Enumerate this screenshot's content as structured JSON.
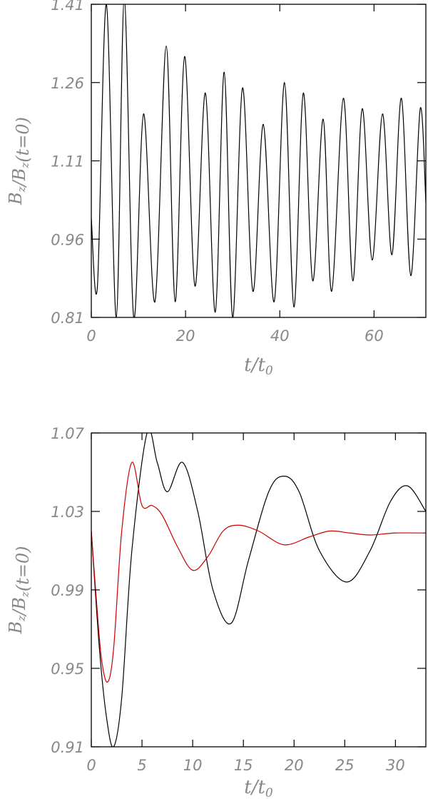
{
  "chart_data": [
    {
      "type": "line",
      "xlabel": "t/t_0",
      "ylabel": "B_z/B_z(t=0)",
      "xlim": [
        0,
        71
      ],
      "ylim": [
        0.81,
        1.41
      ],
      "x_ticks": [
        0,
        20,
        40,
        60
      ],
      "x_tick_labels": [
        "0",
        "20",
        "40",
        "60"
      ],
      "y_ticks": [
        0.81,
        0.96,
        1.11,
        1.26,
        1.41
      ],
      "y_tick_labels": [
        "0.81",
        "0.96",
        "1.11",
        "1.26",
        "1.41"
      ],
      "grid": false,
      "series": [
        {
          "color": "#000000",
          "x": [
            0,
            1.3,
            3.2,
            5.3,
            7.0,
            9.0,
            11.1,
            13.5,
            15.9,
            17.8,
            19.8,
            22.0,
            24.2,
            26.3,
            28.2,
            30.0,
            32.1,
            34.3,
            36.5,
            38.8,
            41.0,
            43.0,
            45.0,
            47.0,
            49.2,
            51.0,
            53.5,
            55.5,
            57.5,
            59.6,
            61.8,
            63.8,
            65.8,
            67.8,
            69.8,
            71.0
          ],
          "y": [
            1.0,
            0.87,
            1.41,
            0.81,
            1.42,
            0.81,
            1.2,
            0.84,
            1.33,
            0.84,
            1.31,
            0.87,
            1.24,
            0.82,
            1.28,
            0.81,
            1.25,
            0.86,
            1.18,
            0.84,
            1.26,
            0.83,
            1.24,
            0.88,
            1.19,
            0.86,
            1.23,
            0.88,
            1.21,
            0.92,
            1.2,
            0.93,
            1.23,
            0.89,
            1.21,
            1.03
          ]
        }
      ]
    },
    {
      "type": "line",
      "xlabel": "t/t_0",
      "ylabel": "B_z/B_z(t=0)",
      "xlim": [
        0,
        33
      ],
      "ylim": [
        0.91,
        1.07
      ],
      "x_ticks": [
        0,
        5,
        10,
        15,
        20,
        25,
        30
      ],
      "x_tick_labels": [
        "0",
        "5",
        "10",
        "15",
        "20",
        "25",
        "30"
      ],
      "y_ticks": [
        0.91,
        0.95,
        0.99,
        1.03,
        1.07
      ],
      "y_tick_labels": [
        "0.91",
        "0.95",
        "0.99",
        "1.03",
        "1.07"
      ],
      "grid": false,
      "series": [
        {
          "color": "#000000",
          "x": [
            0,
            0.8,
            1.5,
            2.2,
            3.0,
            4.0,
            5.5,
            6.5,
            7.5,
            9.0,
            10.5,
            12.0,
            13.8,
            15.5,
            17.5,
            19.0,
            20.5,
            22.5,
            25.2,
            27.5,
            29.5,
            31.2,
            33.0
          ],
          "y": [
            1.02,
            0.96,
            0.925,
            0.91,
            0.935,
            1.01,
            1.07,
            1.055,
            1.04,
            1.055,
            1.03,
            0.99,
            0.973,
            1.005,
            1.04,
            1.048,
            1.04,
            1.01,
            0.994,
            1.01,
            1.035,
            1.043,
            1.03
          ]
        },
        {
          "color": "#cc0000",
          "x": [
            0,
            0.5,
            1.0,
            1.6,
            2.2,
            3.0,
            4.0,
            5.0,
            6.0,
            7.0,
            8.5,
            10.0,
            11.5,
            13.0,
            14.5,
            16.5,
            19.0,
            21.5,
            23.5,
            25.5,
            27.5,
            30.0,
            33.0
          ],
          "y": [
            1.02,
            0.985,
            0.955,
            0.943,
            0.96,
            1.02,
            1.055,
            1.033,
            1.033,
            1.028,
            1.012,
            1.0,
            1.007,
            1.02,
            1.023,
            1.02,
            1.013,
            1.017,
            1.02,
            1.019,
            1.018,
            1.019,
            1.019
          ]
        }
      ]
    }
  ]
}
